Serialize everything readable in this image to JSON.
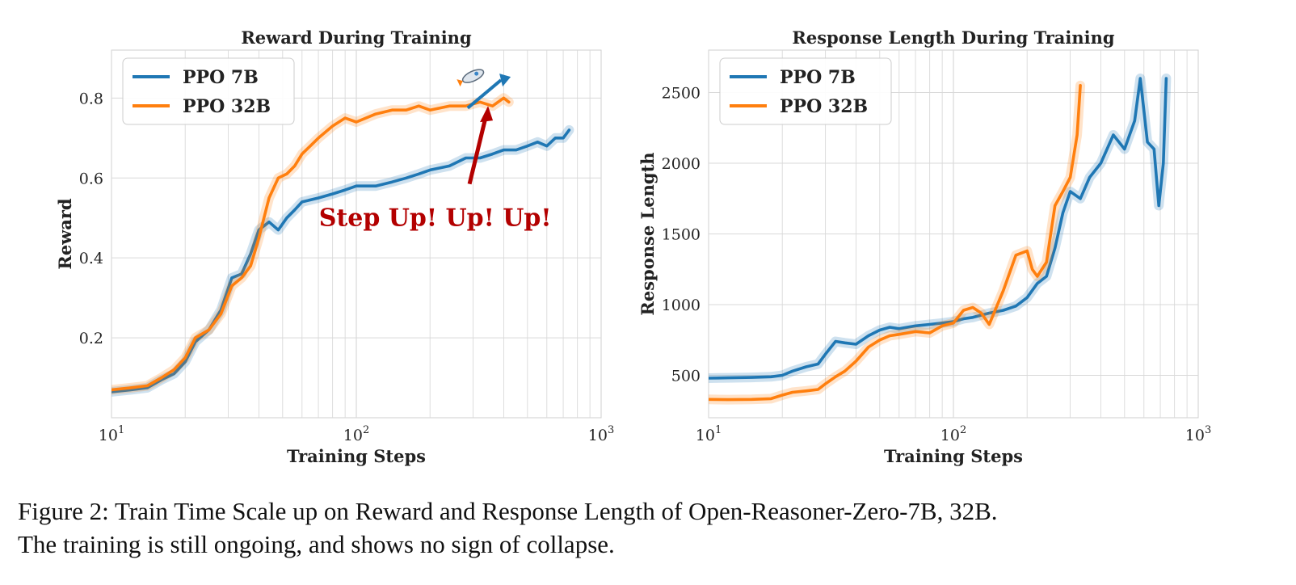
{
  "colors": {
    "ppo7b": "#1f77b4",
    "ppo32b": "#ff7f0e",
    "annotation": "#b30000",
    "grid": "#d9d9d9"
  },
  "chart_data": [
    {
      "type": "line",
      "title": "Reward During Training",
      "xlabel": "Training Steps",
      "ylabel": "Reward",
      "xscale": "log",
      "xlim": [
        10,
        1000
      ],
      "ylim": [
        0.0,
        0.92
      ],
      "xticks": [
        10,
        100,
        1000
      ],
      "xticklabels": [
        "10",
        "10",
        "10"
      ],
      "xticklabel_exponents": [
        "1",
        "2",
        "3"
      ],
      "yticks": [
        0.2,
        0.4,
        0.6,
        0.8
      ],
      "yticklabels": [
        "0.2",
        "0.4",
        "0.6",
        "0.8"
      ],
      "grid": true,
      "legend": "top-left",
      "annotation": "Step Up! Up! Up!",
      "series": [
        {
          "name": "PPO 7B",
          "color": "#1f77b4",
          "x": [
            10,
            12,
            14,
            16,
            18,
            20,
            22,
            25,
            28,
            31,
            34,
            37,
            40,
            44,
            48,
            52,
            56,
            60,
            70,
            80,
            90,
            100,
            120,
            140,
            160,
            180,
            200,
            240,
            280,
            320,
            360,
            400,
            450,
            500,
            550,
            600,
            650,
            700,
            740
          ],
          "y": [
            0.065,
            0.07,
            0.075,
            0.095,
            0.11,
            0.14,
            0.19,
            0.22,
            0.27,
            0.35,
            0.36,
            0.41,
            0.47,
            0.49,
            0.47,
            0.5,
            0.52,
            0.54,
            0.55,
            0.56,
            0.57,
            0.58,
            0.58,
            0.59,
            0.6,
            0.61,
            0.62,
            0.63,
            0.65,
            0.65,
            0.66,
            0.67,
            0.67,
            0.68,
            0.69,
            0.68,
            0.7,
            0.7,
            0.72
          ]
        },
        {
          "name": "PPO 32B",
          "color": "#ff7f0e",
          "x": [
            10,
            12,
            14,
            16,
            18,
            20,
            22,
            25,
            28,
            31,
            34,
            37,
            40,
            44,
            48,
            52,
            56,
            60,
            70,
            80,
            90,
            100,
            120,
            140,
            160,
            180,
            200,
            240,
            280,
            320,
            360,
            400,
            420
          ],
          "y": [
            0.07,
            0.075,
            0.08,
            0.1,
            0.12,
            0.15,
            0.2,
            0.22,
            0.26,
            0.33,
            0.35,
            0.38,
            0.45,
            0.55,
            0.6,
            0.61,
            0.63,
            0.66,
            0.7,
            0.73,
            0.75,
            0.74,
            0.76,
            0.77,
            0.77,
            0.78,
            0.77,
            0.78,
            0.78,
            0.79,
            0.78,
            0.8,
            0.79
          ]
        }
      ]
    },
    {
      "type": "line",
      "title": "Response Length During Training",
      "xlabel": "Training Steps",
      "ylabel": "Response Length",
      "xscale": "log",
      "xlim": [
        10,
        1000
      ],
      "ylim": [
        200,
        2800
      ],
      "xticks": [
        10,
        100,
        1000
      ],
      "xticklabels": [
        "10",
        "10",
        "10"
      ],
      "xticklabel_exponents": [
        "1",
        "2",
        "3"
      ],
      "yticks": [
        500,
        1000,
        1500,
        2000,
        2500
      ],
      "yticklabels": [
        "500",
        "1000",
        "1500",
        "2000",
        "2500"
      ],
      "grid": true,
      "legend": "top-left",
      "series": [
        {
          "name": "PPO 7B",
          "color": "#1f77b4",
          "x": [
            10,
            12,
            15,
            18,
            20,
            22,
            25,
            28,
            30,
            33,
            36,
            40,
            45,
            50,
            55,
            60,
            70,
            80,
            90,
            100,
            110,
            120,
            140,
            160,
            180,
            200,
            220,
            240,
            260,
            280,
            300,
            330,
            360,
            400,
            450,
            500,
            550,
            580,
            620,
            660,
            690,
            720,
            740
          ],
          "y": [
            480,
            482,
            485,
            490,
            500,
            530,
            560,
            580,
            650,
            740,
            730,
            720,
            780,
            820,
            840,
            830,
            850,
            860,
            870,
            880,
            900,
            910,
            940,
            960,
            990,
            1050,
            1150,
            1200,
            1400,
            1650,
            1800,
            1750,
            1900,
            2000,
            2200,
            2100,
            2300,
            2600,
            2150,
            2100,
            1700,
            2000,
            2600
          ]
        },
        {
          "name": "PPO 32B",
          "color": "#ff7f0e",
          "x": [
            10,
            12,
            15,
            18,
            20,
            22,
            25,
            28,
            30,
            33,
            36,
            40,
            45,
            50,
            55,
            60,
            70,
            80,
            90,
            100,
            110,
            120,
            130,
            140,
            160,
            180,
            200,
            210,
            220,
            240,
            260,
            280,
            300,
            320,
            330
          ],
          "y": [
            330,
            328,
            330,
            335,
            360,
            380,
            390,
            400,
            440,
            490,
            530,
            600,
            700,
            750,
            780,
            790,
            810,
            800,
            850,
            870,
            960,
            980,
            940,
            860,
            1100,
            1350,
            1380,
            1250,
            1200,
            1300,
            1700,
            1800,
            1900,
            2200,
            2550
          ]
        }
      ]
    }
  ],
  "caption": {
    "line1": "Figure 2: Train Time Scale up on Reward and Response Length of Open-Reasoner-Zero-7B, 32B.",
    "line2": "The training is still ongoing, and shows no sign of collapse."
  }
}
